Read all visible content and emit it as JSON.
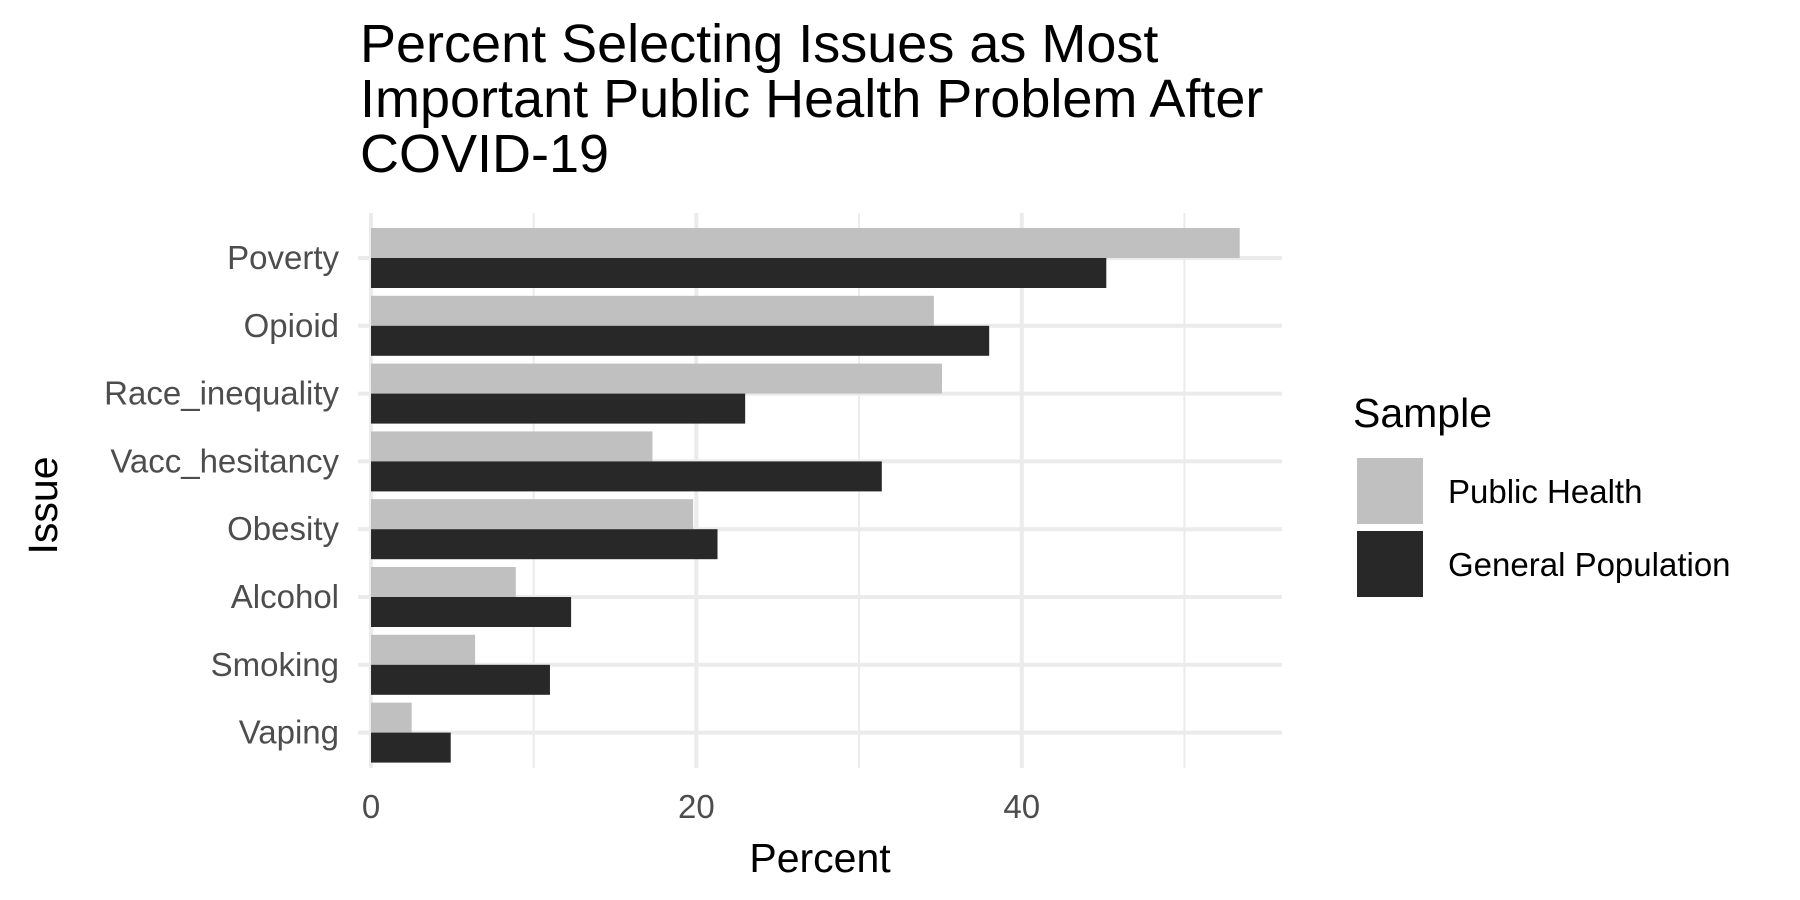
{
  "chart_data": {
    "type": "bar",
    "orientation": "horizontal",
    "title_lines": [
      "Percent Selecting Issues as Most",
      "Important Public Health Problem After",
      "COVID-19"
    ],
    "xlabel": "Percent",
    "ylabel": "Issue",
    "categories": [
      "Poverty",
      "Opioid",
      "Race_inequality",
      "Vacc_hesitancy",
      "Obesity",
      "Alcohol",
      "Smoking",
      "Vaping"
    ],
    "series": [
      {
        "name": "Public Health",
        "color": "#c0c0c0",
        "values": [
          53.4,
          34.6,
          35.1,
          17.3,
          19.8,
          8.9,
          6.4,
          2.5
        ]
      },
      {
        "name": "General Population",
        "color": "#282828",
        "values": [
          45.2,
          38.0,
          23.0,
          31.4,
          21.3,
          12.3,
          11.0,
          4.9
        ]
      }
    ],
    "xlim": [
      -0.8,
      56.0
    ],
    "x_ticks": [
      0,
      20,
      40
    ],
    "x_minor_ticks": [
      10,
      30,
      50
    ],
    "grid": true,
    "legend": {
      "title": "Sample",
      "position": "right"
    }
  }
}
